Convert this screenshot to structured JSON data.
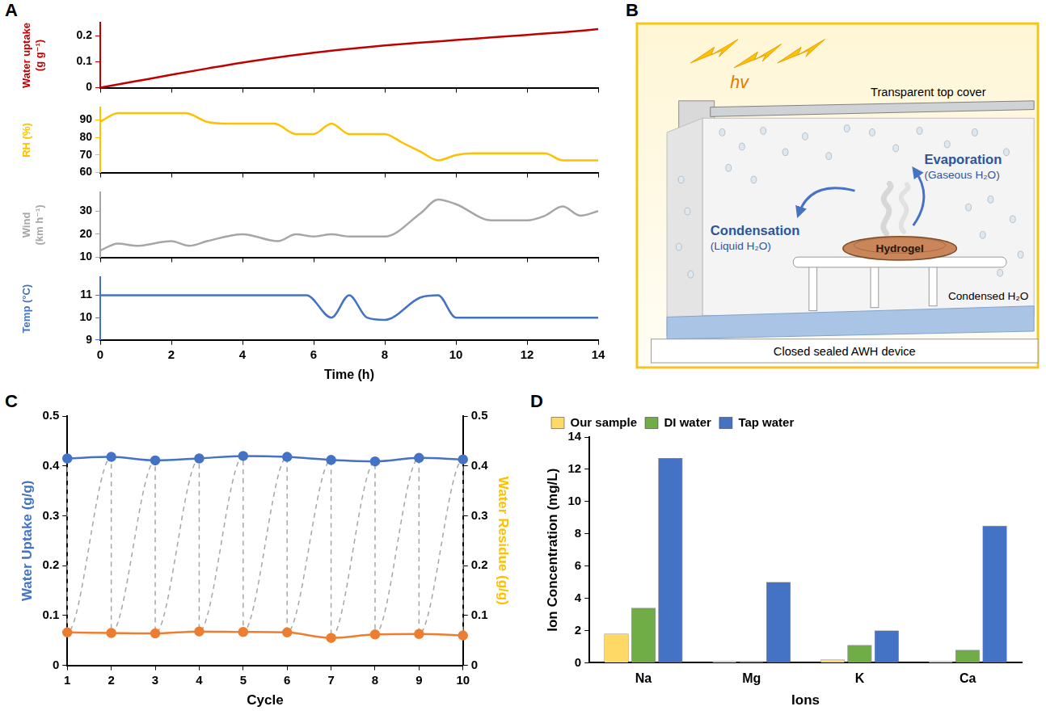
{
  "chart_data": [
    {
      "panel": "A",
      "type": "line",
      "ylabel": "Water uptake (g g⁻¹)",
      "x": [
        0,
        1,
        2,
        3,
        4,
        5,
        6,
        7,
        8,
        9,
        10,
        11,
        12,
        13,
        14
      ],
      "values": [
        0,
        0.025,
        0.05,
        0.074,
        0.097,
        0.117,
        0.135,
        0.15,
        0.163,
        0.174,
        0.184,
        0.194,
        0.204,
        0.214,
        0.226
      ],
      "color": "#c00000",
      "marker": "none",
      "line_style": "solid",
      "xlim": [
        0,
        14
      ],
      "xticks": [
        0,
        2,
        4,
        6,
        8,
        10,
        12,
        14
      ],
      "ylim": [
        0,
        0.25
      ],
      "yticks": [
        0,
        0.1,
        0.2
      ],
      "grid": false,
      "tick_labels": "y"
    },
    {
      "type": "line",
      "ylabel": "RH (%)",
      "x": [
        0,
        0.5,
        1,
        1.5,
        2,
        2.4,
        3,
        3.5,
        4,
        4.5,
        4.9,
        5.5,
        6,
        6.5,
        7,
        7.5,
        8,
        8.5,
        9,
        9.5,
        10,
        10.5,
        11,
        12,
        12.5,
        13,
        14
      ],
      "values": [
        89,
        94,
        94,
        94,
        94,
        94,
        89,
        88,
        88,
        88,
        88,
        82,
        82,
        88,
        82,
        82,
        82,
        77,
        72,
        67,
        70,
        71,
        71,
        71,
        71,
        67,
        67
      ],
      "color": "#ffc000",
      "marker": "none",
      "line_style": "solid",
      "xlim": [
        0,
        14
      ],
      "xticks": [
        0,
        2,
        4,
        6,
        8,
        10,
        12,
        14
      ],
      "ylim": [
        60,
        97
      ],
      "yticks": [
        60,
        70,
        80,
        90
      ],
      "grid": false,
      "tick_labels": "y"
    },
    {
      "type": "line",
      "ylabel": "Wind (km h⁻¹)",
      "x": [
        0,
        0.5,
        1,
        2,
        2.5,
        3,
        4,
        5,
        5.5,
        6,
        6.5,
        7,
        8,
        9,
        9.5,
        10,
        11,
        12,
        12.5,
        13,
        13.5,
        14
      ],
      "values": [
        13,
        16,
        15,
        17,
        15,
        17,
        20,
        17,
        20,
        19,
        20,
        19,
        19,
        29,
        35,
        33,
        26,
        26,
        28,
        32,
        28,
        30
      ],
      "color": "#a6a6a6",
      "marker": "none",
      "line_style": "solid",
      "xlim": [
        0,
        14
      ],
      "xticks": [
        0,
        2,
        4,
        6,
        8,
        10,
        12,
        14
      ],
      "ylim": [
        10,
        38
      ],
      "yticks": [
        10,
        20,
        30
      ],
      "grid": false,
      "tick_labels": "y"
    },
    {
      "type": "line",
      "ylabel": "Temp (°C)",
      "xlabel": "Time (h)",
      "x": [
        0,
        5.8,
        6.5,
        7,
        7.5,
        8,
        9,
        9.5,
        10,
        10.5,
        14
      ],
      "values": [
        11,
        11,
        10,
        11,
        10,
        9.9,
        10.9,
        11,
        10,
        10,
        10
      ],
      "color": "#4472c4",
      "marker": "none",
      "line_style": "solid",
      "xlim": [
        0,
        14
      ],
      "xticks": [
        0,
        2,
        4,
        6,
        8,
        10,
        12,
        14
      ],
      "ylim": [
        9,
        11.8
      ],
      "yticks": [
        9,
        10,
        11
      ],
      "grid": false
    },
    {
      "panel": "C",
      "type": "line",
      "xlabel": "Cycle",
      "ylabel": "Water Uptake (g/g)",
      "y2label": "Water Residue (g/g)",
      "xlim": [
        1,
        10
      ],
      "xticks": [
        1,
        2,
        3,
        4,
        5,
        6,
        7,
        8,
        9,
        10
      ],
      "ylim": [
        0,
        0.5
      ],
      "yticks": [
        0,
        0.1,
        0.2,
        0.3,
        0.4,
        0.5
      ],
      "y2lim": [
        0,
        0.5
      ],
      "y2ticks": [
        0,
        0.1,
        0.2,
        0.3,
        0.4,
        0.5
      ],
      "grid": false,
      "series": [
        {
          "color": "#4472c4",
          "marker": "circle",
          "line_style": "solid",
          "x": [
            1,
            2,
            3,
            4,
            5,
            6,
            7,
            8,
            9,
            10
          ],
          "values": [
            0.415,
            0.418,
            0.411,
            0.415,
            0.42,
            0.418,
            0.412,
            0.409,
            0.416,
            0.413
          ]
        },
        {
          "color": "#ed7d31",
          "marker": "circle",
          "line_style": "solid",
          "axis": "y2",
          "x": [
            1,
            2,
            3,
            4,
            5,
            6,
            7,
            8,
            9,
            10
          ],
          "values": [
            0.066,
            0.065,
            0.064,
            0.068,
            0.067,
            0.066,
            0.055,
            0.062,
            0.063,
            0.06
          ]
        },
        {
          "color": "#a6a6a6",
          "marker": "none",
          "line_style": "dashed",
          "x": [
            1,
            1,
            2,
            2,
            3,
            3,
            4,
            4,
            5,
            5,
            6,
            6,
            7,
            7,
            8,
            8,
            9,
            9,
            10,
            10
          ],
          "values": [
            0.415,
            0.066,
            0.418,
            0.065,
            0.411,
            0.064,
            0.415,
            0.068,
            0.42,
            0.067,
            0.418,
            0.066,
            0.412,
            0.055,
            0.409,
            0.062,
            0.416,
            0.063,
            0.413,
            0.06
          ]
        }
      ]
    },
    {
      "panel": "D",
      "type": "bar",
      "xlabel": "Ions",
      "ylabel": "Ion Concentration (mg/L)",
      "categories": [
        "Na",
        "Mg",
        "K",
        "Ca"
      ],
      "series": [
        {
          "name": "Our sample",
          "color": "#ffd966",
          "values": [
            1.8,
            0.1,
            0.2,
            0.1
          ]
        },
        {
          "name": "DI water",
          "color": "#70ad47",
          "values": [
            3.4,
            0.1,
            1.1,
            0.8
          ]
        },
        {
          "name": "Tap water",
          "color": "#4472c4",
          "values": [
            12.7,
            5.0,
            2.0,
            8.5
          ]
        }
      ],
      "ylim": [
        0,
        14
      ],
      "yticks": [
        0,
        2,
        4,
        6,
        8,
        10,
        12,
        14
      ],
      "grid": false,
      "legend": "top"
    }
  ],
  "diagram": {
    "panel": "B",
    "light": "hv",
    "cover": "Transparent top cover",
    "evaporation": "Evaporation",
    "evaporation_note": "(Gaseous H₂O)",
    "condensation": "Condensation",
    "condensation_note": "(Liquid H₂O)",
    "hydrogel": "Hydrogel",
    "condensed": "Condensed H₂O",
    "device": "Closed sealed AWH device"
  }
}
